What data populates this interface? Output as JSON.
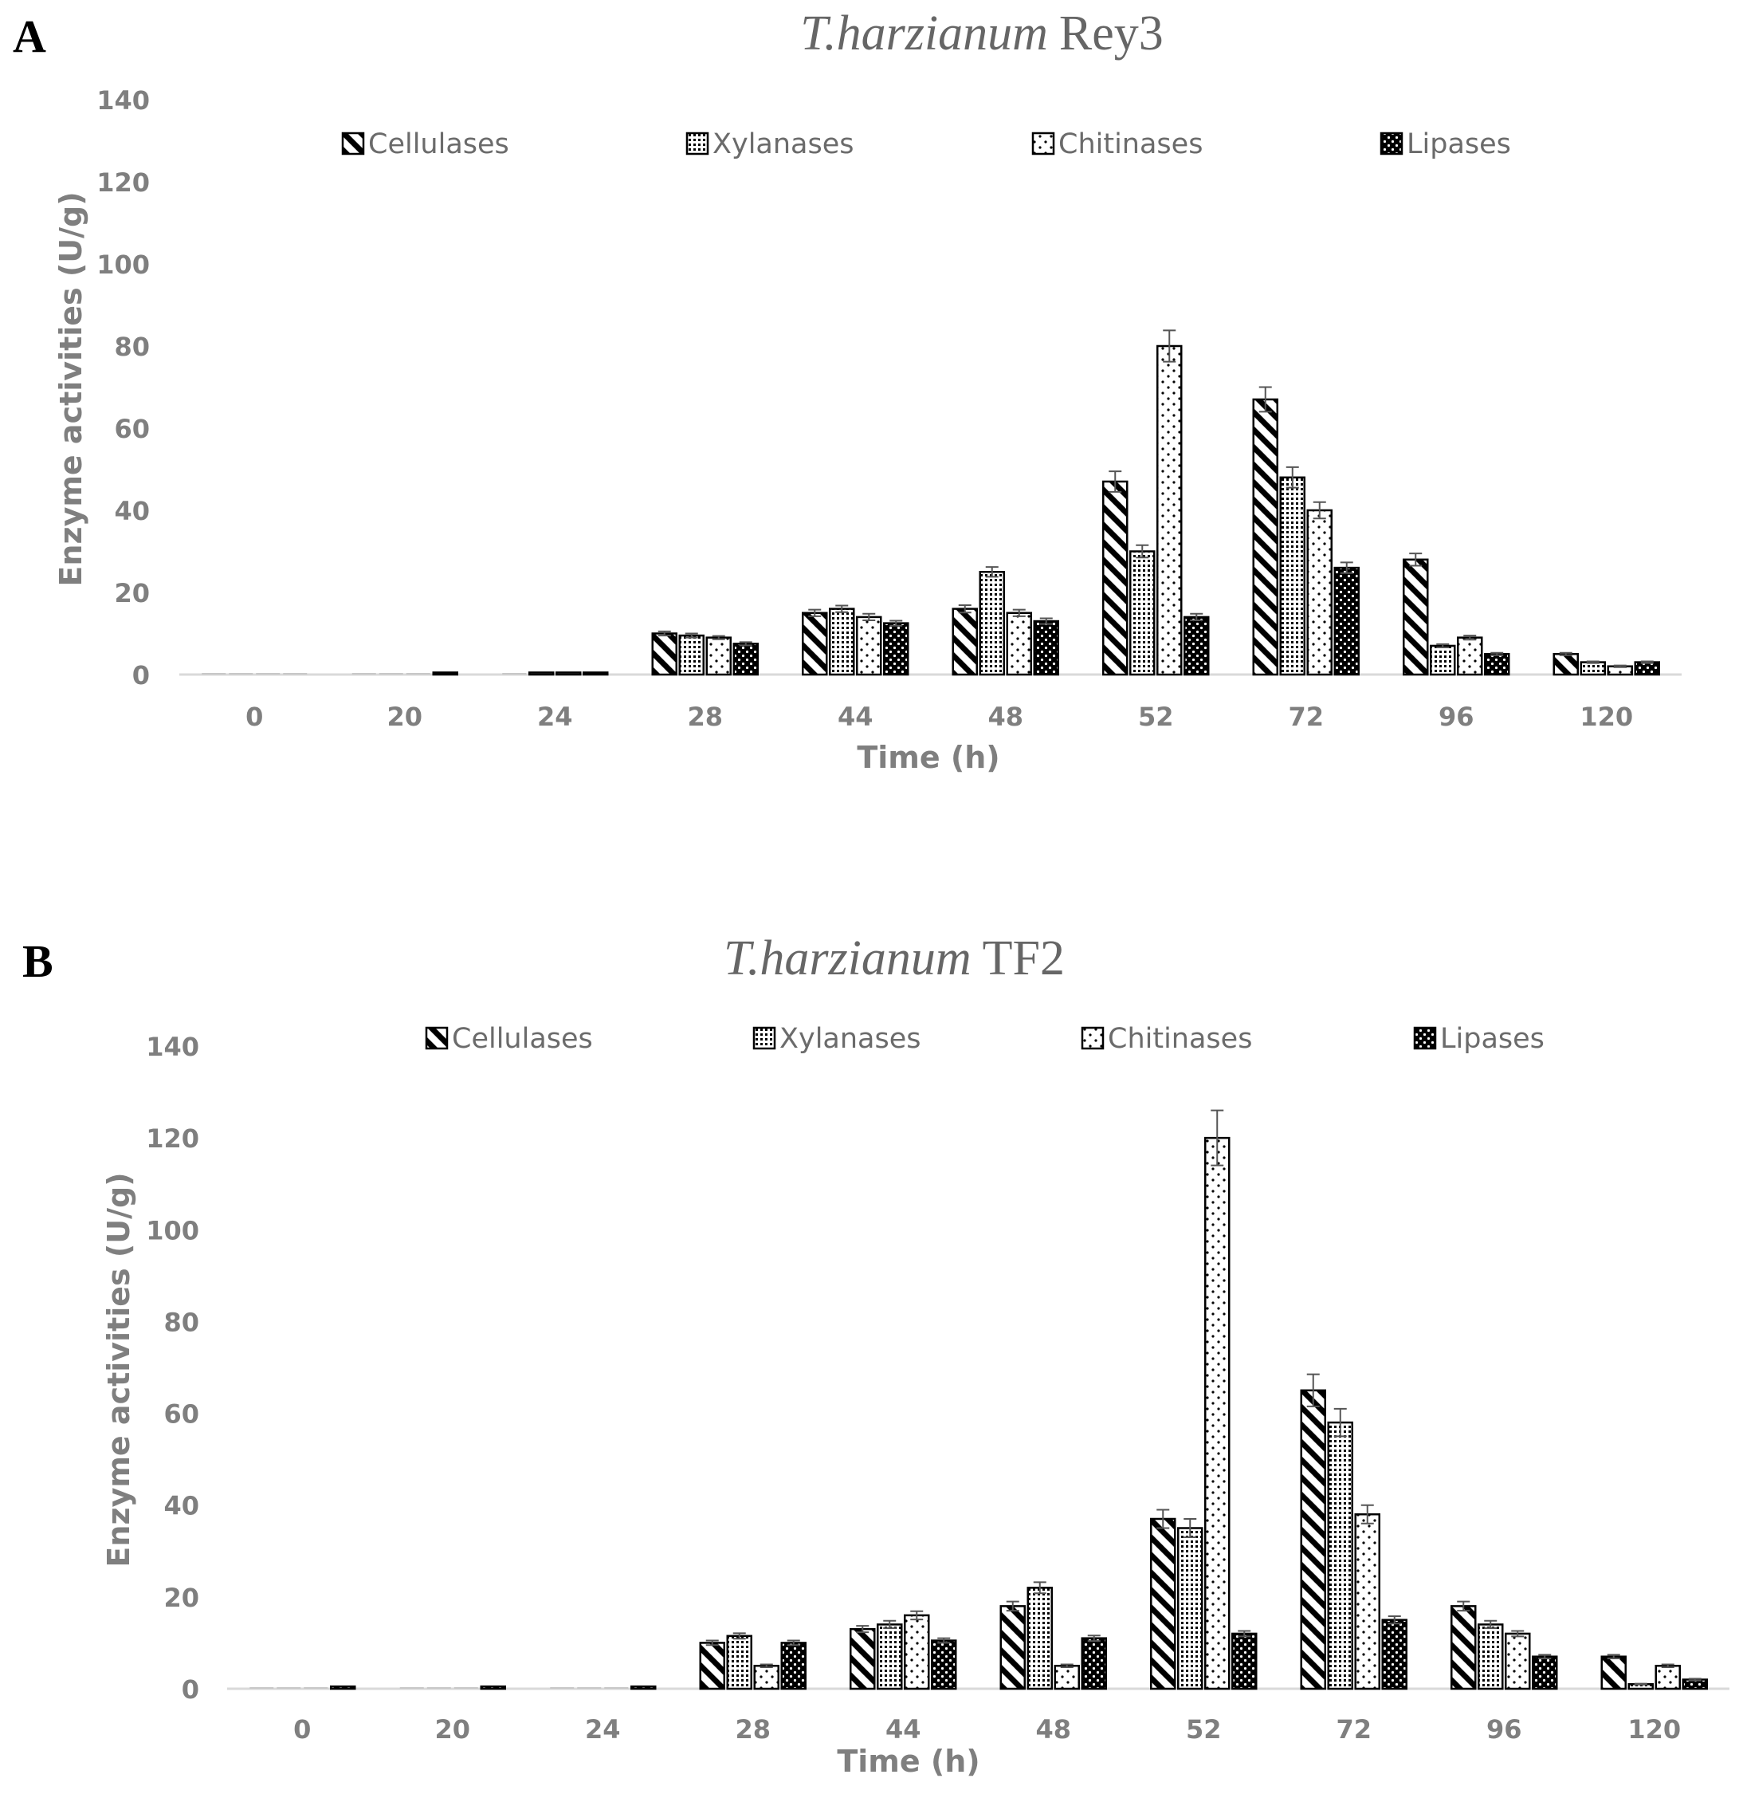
{
  "chart_data": [
    {
      "type": "bar",
      "panel_label": "A",
      "title_italic": "T.harzianum",
      "title_rest": "Rey3",
      "xlabel": "Time (h)",
      "ylabel": "Enzyme activities (U/g)",
      "ylim": [
        0,
        140
      ],
      "yticks": [
        "0",
        "20",
        "40",
        "60",
        "80",
        "100",
        "120",
        "140"
      ],
      "categories": [
        "0",
        "20",
        "24",
        "28",
        "44",
        "48",
        "52",
        "72",
        "96",
        "120"
      ],
      "legend_position": "top",
      "grid": false,
      "series": [
        {
          "name": "Cellulases",
          "pattern": "diagonal-stripes",
          "values": [
            0,
            0,
            0,
            10,
            15,
            16,
            47,
            67,
            28,
            5
          ],
          "errors": [
            0,
            0,
            0,
            0.5,
            0.8,
            0.9,
            2.5,
            3,
            1.5,
            0.3
          ]
        },
        {
          "name": "Xylanases",
          "pattern": "dense-dots",
          "values": [
            0,
            0,
            0.5,
            9.5,
            16,
            25,
            30,
            48,
            7,
            3
          ],
          "errors": [
            0,
            0,
            0,
            0.5,
            0.8,
            1.2,
            1.5,
            2.5,
            0.4,
            0.2
          ]
        },
        {
          "name": "Chitinases",
          "pattern": "sparse-dots",
          "values": [
            0,
            0,
            0.5,
            9,
            14,
            15,
            80,
            40,
            9,
            2
          ],
          "errors": [
            0,
            0,
            0,
            0.4,
            0.8,
            0.8,
            3.8,
            2,
            0.5,
            0.2
          ]
        },
        {
          "name": "Lipases",
          "pattern": "black-dotted",
          "values": [
            0,
            0.5,
            0.5,
            7.5,
            12.5,
            13,
            14,
            26,
            5,
            3
          ],
          "errors": [
            0,
            0,
            0,
            0.4,
            0.6,
            0.7,
            0.8,
            1.3,
            0.3,
            0.2
          ]
        }
      ]
    },
    {
      "type": "bar",
      "panel_label": "B",
      "title_italic": "T.harzianum",
      "title_rest": "TF2",
      "xlabel": "Time (h)",
      "ylabel": "Enzyme activities (U/g)",
      "ylim": [
        0,
        140
      ],
      "yticks": [
        "0",
        "20",
        "40",
        "60",
        "80",
        "100",
        "120",
        "140"
      ],
      "categories": [
        "0",
        "20",
        "24",
        "28",
        "44",
        "48",
        "52",
        "72",
        "96",
        "120"
      ],
      "legend_position": "top",
      "grid": false,
      "series": [
        {
          "name": "Cellulases",
          "pattern": "diagonal-stripes",
          "values": [
            0,
            0,
            0,
            10,
            13,
            18,
            37,
            65,
            18,
            7
          ],
          "errors": [
            0,
            0,
            0,
            0.5,
            0.7,
            1,
            2,
            3.5,
            1,
            0.4
          ]
        },
        {
          "name": "Xylanases",
          "pattern": "dense-dots",
          "values": [
            0,
            0,
            0,
            11.5,
            14,
            22,
            35,
            58,
            14,
            1
          ],
          "errors": [
            0,
            0,
            0,
            0.6,
            0.8,
            1.2,
            2,
            3,
            0.8,
            0.1
          ]
        },
        {
          "name": "Chitinases",
          "pattern": "sparse-dots",
          "values": [
            0,
            0,
            0,
            5,
            16,
            5,
            120,
            38,
            12,
            5
          ],
          "errors": [
            0,
            0,
            0,
            0.3,
            0.9,
            0.3,
            6,
            2,
            0.6,
            0.3
          ]
        },
        {
          "name": "Lipases",
          "pattern": "black-dotted",
          "values": [
            0.5,
            0.5,
            0.5,
            10,
            10.5,
            11,
            12,
            15,
            7,
            2
          ],
          "errors": [
            0,
            0,
            0,
            0.5,
            0.5,
            0.6,
            0.6,
            0.8,
            0.4,
            0.2
          ]
        }
      ]
    }
  ]
}
